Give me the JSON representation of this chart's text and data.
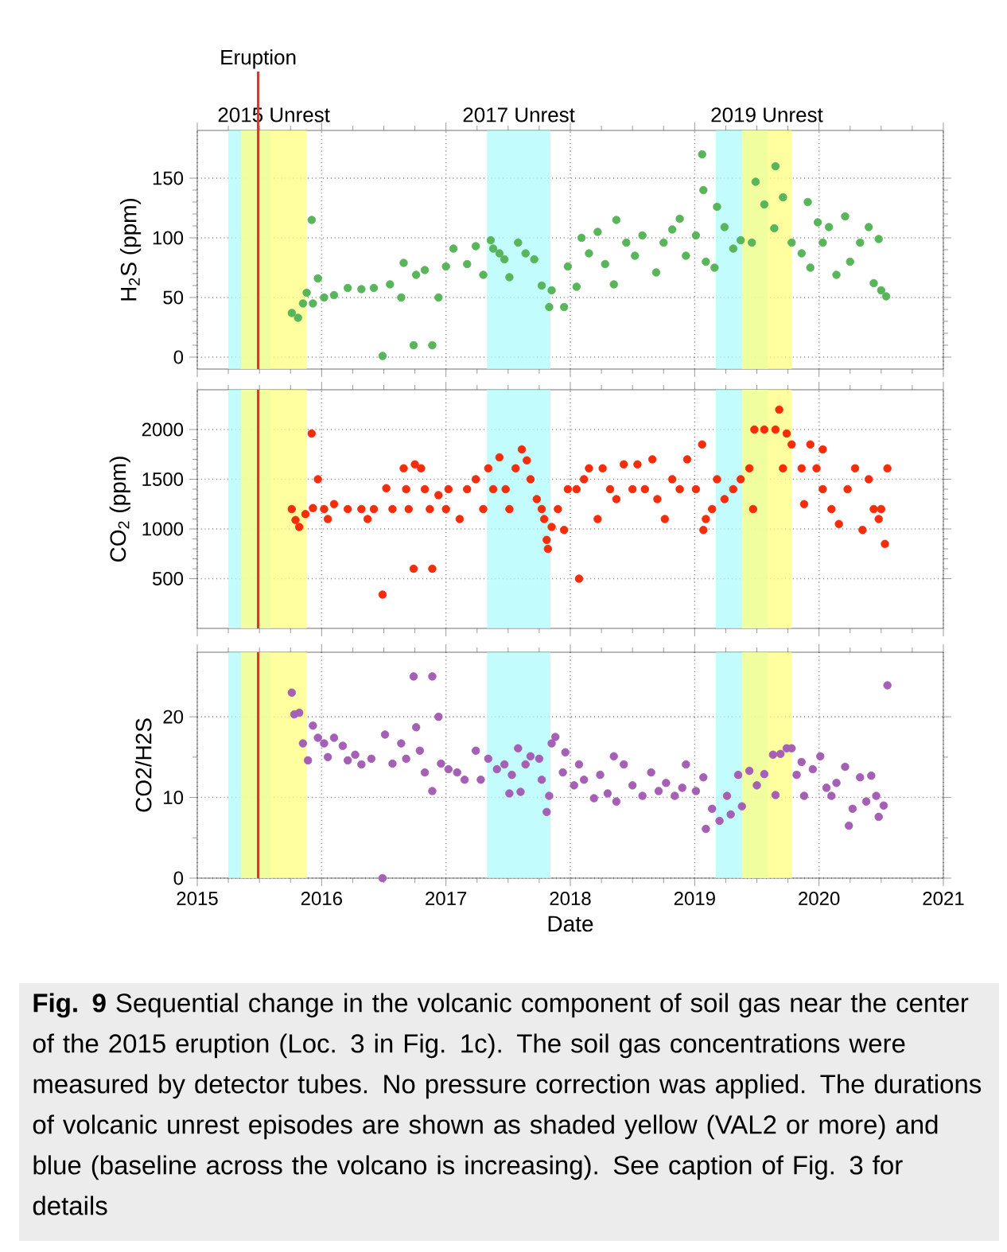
{
  "chart_data": [
    {
      "type": "scatter",
      "ylabel": "H$_{2}$S (ppm)",
      "color": "#59b55a",
      "marker": "circle",
      "grid": true,
      "tick_labels": "y",
      "xlim": [
        2015,
        2021
      ],
      "xticks": [
        2015,
        2016,
        2017,
        2018,
        2019,
        2020,
        2021
      ],
      "ylim": [
        -10,
        190
      ],
      "yticks": [
        0,
        50,
        100,
        150
      ],
      "x": [
        2015.76,
        2015.81,
        2015.85,
        2015.88,
        2015.92,
        2015.93,
        2015.97,
        2016.02,
        2016.1,
        2016.21,
        2016.32,
        2016.42,
        2016.49,
        2016.55,
        2016.64,
        2016.66,
        2016.74,
        2016.76,
        2016.83,
        2016.89,
        2016.94,
        2017.0,
        2017.06,
        2017.17,
        2017.24,
        2017.3,
        2017.36,
        2017.38,
        2017.43,
        2017.47,
        2017.51,
        2017.58,
        2017.64,
        2017.71,
        2017.77,
        2017.83,
        2017.85,
        2017.95,
        2017.98,
        2018.05,
        2018.09,
        2018.15,
        2018.22,
        2018.28,
        2018.35,
        2018.37,
        2018.45,
        2018.52,
        2018.58,
        2018.69,
        2018.75,
        2018.82,
        2018.88,
        2018.93,
        2019.01,
        2019.06,
        2019.07,
        2019.09,
        2019.16,
        2019.18,
        2019.24,
        2019.31,
        2019.37,
        2019.46,
        2019.49,
        2019.56,
        2019.64,
        2019.65,
        2019.71,
        2019.78,
        2019.86,
        2019.91,
        2019.93,
        2019.99,
        2020.03,
        2020.08,
        2020.14,
        2020.21,
        2020.25,
        2020.33,
        2020.4,
        2020.44,
        2020.48,
        2020.5,
        2020.54
      ],
      "values": [
        37,
        33,
        45,
        54,
        115,
        45,
        66,
        50,
        52,
        58,
        57,
        58,
        1,
        61,
        50,
        79,
        10,
        69,
        73,
        10,
        50,
        76,
        91,
        78,
        93,
        69,
        98,
        91,
        87,
        82,
        67,
        96,
        87,
        82,
        60,
        42,
        56,
        42,
        76,
        59,
        100,
        87,
        105,
        78,
        61,
        115,
        96,
        85,
        102,
        71,
        96,
        107,
        116,
        85,
        102,
        170,
        140,
        80,
        75,
        126,
        109,
        91,
        98,
        96,
        147,
        128,
        108,
        160,
        134,
        96,
        87,
        130,
        75,
        113,
        96,
        109,
        69,
        118,
        80,
        96,
        109,
        62,
        99,
        56,
        51
      ],
      "bands": [
        {
          "axis": "x",
          "from": 2015.25,
          "to": 2015.59,
          "color": "#aefbfb"
        },
        {
          "axis": "x",
          "from": 2015.35,
          "to": 2015.88,
          "color": "#ffff80",
          "label": "2015 Unrest"
        },
        {
          "axis": "x",
          "from": 2017.33,
          "to": 2017.84,
          "color": "#aefbfb",
          "label": "2017 Unrest"
        },
        {
          "axis": "x",
          "from": 2019.17,
          "to": 2019.59,
          "color": "#aefbfb"
        },
        {
          "axis": "x",
          "from": 2019.38,
          "to": 2019.78,
          "color": "#ffff80",
          "label": "2019 Unrest"
        }
      ],
      "ref_lines": [
        {
          "axis": "x",
          "value": 2015.49,
          "color": "#e8322a",
          "label": "Eruption"
        }
      ]
    },
    {
      "type": "scatter",
      "ylabel": "CO$_{2}$ (ppm)",
      "color": "#f52c0a",
      "marker": "circle",
      "grid": true,
      "tick_labels": "y",
      "xlim": [
        2015,
        2021
      ],
      "xticks": [
        2015,
        2016,
        2017,
        2018,
        2019,
        2020,
        2021
      ],
      "ylim": [
        0,
        2400
      ],
      "yticks": [
        500,
        1000,
        1500,
        2000
      ],
      "x": [
        2015.76,
        2015.79,
        2015.82,
        2015.87,
        2015.92,
        2015.93,
        2015.97,
        2016.02,
        2016.05,
        2016.1,
        2016.21,
        2016.32,
        2016.37,
        2016.42,
        2016.49,
        2016.52,
        2016.57,
        2016.66,
        2016.68,
        2016.7,
        2016.74,
        2016.75,
        2016.8,
        2016.83,
        2016.87,
        2016.89,
        2016.94,
        2017.0,
        2017.02,
        2017.11,
        2017.17,
        2017.24,
        2017.3,
        2017.34,
        2017.38,
        2017.43,
        2017.48,
        2017.51,
        2017.56,
        2017.61,
        2017.65,
        2017.68,
        2017.73,
        2017.77,
        2017.79,
        2017.81,
        2017.82,
        2017.85,
        2017.9,
        2017.95,
        2017.98,
        2018.05,
        2018.07,
        2018.11,
        2018.15,
        2018.22,
        2018.26,
        2018.32,
        2018.37,
        2018.43,
        2018.5,
        2018.54,
        2018.6,
        2018.66,
        2018.7,
        2018.76,
        2018.82,
        2018.88,
        2018.94,
        2019.01,
        2019.06,
        2019.07,
        2019.09,
        2019.14,
        2019.18,
        2019.24,
        2019.31,
        2019.37,
        2019.44,
        2019.47,
        2019.48,
        2019.56,
        2019.65,
        2019.68,
        2019.71,
        2019.74,
        2019.78,
        2019.86,
        2019.88,
        2019.93,
        2019.98,
        2020.03,
        2020.03,
        2020.1,
        2020.16,
        2020.23,
        2020.29,
        2020.35,
        2020.4,
        2020.44,
        2020.48,
        2020.5,
        2020.53,
        2020.55
      ],
      "values": [
        1200,
        1090,
        1020,
        1150,
        1960,
        1210,
        1500,
        1200,
        1100,
        1250,
        1200,
        1200,
        1100,
        1200,
        340,
        1410,
        1200,
        1610,
        1400,
        1200,
        600,
        1650,
        1610,
        1400,
        1200,
        600,
        1340,
        1200,
        1400,
        1100,
        1400,
        1500,
        1200,
        1610,
        1400,
        1720,
        1400,
        1200,
        1610,
        1800,
        1690,
        1500,
        1300,
        1200,
        1100,
        890,
        800,
        1020,
        1200,
        990,
        1400,
        1400,
        500,
        1500,
        1610,
        1100,
        1610,
        1400,
        1300,
        1650,
        1400,
        1650,
        1400,
        1700,
        1300,
        1100,
        1500,
        1400,
        1700,
        1400,
        1850,
        990,
        1100,
        1200,
        1500,
        1300,
        1400,
        1500,
        1610,
        1200,
        2000,
        2000,
        2000,
        2200,
        1610,
        1960,
        1850,
        1610,
        1250,
        1850,
        1610,
        1800,
        1400,
        1200,
        1050,
        1400,
        1610,
        990,
        1500,
        1200,
        1100,
        1200,
        850,
        1610
      ],
      "bands": [
        {
          "axis": "x",
          "from": 2015.25,
          "to": 2015.59,
          "color": "#aefbfb"
        },
        {
          "axis": "x",
          "from": 2015.35,
          "to": 2015.88,
          "color": "#ffff80"
        },
        {
          "axis": "x",
          "from": 2017.33,
          "to": 2017.84,
          "color": "#aefbfb"
        },
        {
          "axis": "x",
          "from": 2019.17,
          "to": 2019.59,
          "color": "#aefbfb"
        },
        {
          "axis": "x",
          "from": 2019.38,
          "to": 2019.78,
          "color": "#ffff80"
        }
      ],
      "ref_lines": [
        {
          "axis": "x",
          "value": 2015.49,
          "color": "#e8322a"
        }
      ]
    },
    {
      "type": "scatter",
      "ylabel": "CO2/H2S",
      "xlabel": "Date",
      "color": "#a55fb5",
      "marker": "circle",
      "grid": true,
      "xlim": [
        2015,
        2021
      ],
      "xticks": [
        2015,
        2016,
        2017,
        2018,
        2019,
        2020,
        2021
      ],
      "ylim": [
        0,
        28
      ],
      "yticks": [
        0,
        10,
        20
      ],
      "x": [
        2015.76,
        2015.78,
        2015.82,
        2015.85,
        2015.89,
        2015.93,
        2015.97,
        2016.02,
        2016.05,
        2016.1,
        2016.17,
        2016.21,
        2016.27,
        2016.32,
        2016.4,
        2016.49,
        2016.51,
        2016.57,
        2016.64,
        2016.68,
        2016.74,
        2016.76,
        2016.79,
        2016.83,
        2016.89,
        2016.89,
        2016.94,
        2016.96,
        2017.02,
        2017.09,
        2017.15,
        2017.24,
        2017.28,
        2017.34,
        2017.41,
        2017.47,
        2017.51,
        2017.53,
        2017.58,
        2017.6,
        2017.64,
        2017.68,
        2017.75,
        2017.77,
        2017.81,
        2017.83,
        2017.85,
        2017.88,
        2017.94,
        2017.96,
        2018.03,
        2018.07,
        2018.11,
        2018.19,
        2018.24,
        2018.3,
        2018.35,
        2018.37,
        2018.43,
        2018.5,
        2018.58,
        2018.65,
        2018.71,
        2018.77,
        2018.84,
        2018.9,
        2018.93,
        2019.01,
        2019.07,
        2019.09,
        2019.14,
        2019.2,
        2019.26,
        2019.29,
        2019.35,
        2019.38,
        2019.44,
        2019.5,
        2019.56,
        2019.63,
        2019.65,
        2019.69,
        2019.74,
        2019.78,
        2019.82,
        2019.86,
        2019.88,
        2019.95,
        2020.01,
        2020.06,
        2020.1,
        2020.14,
        2020.21,
        2020.24,
        2020.27,
        2020.33,
        2020.38,
        2020.42,
        2020.46,
        2020.48,
        2020.52,
        2020.55
      ],
      "values": [
        23.0,
        20.3,
        20.5,
        16.7,
        14.6,
        18.9,
        17.4,
        16.7,
        15.0,
        17.4,
        16.4,
        14.6,
        15.3,
        14.1,
        14.8,
        0,
        17.8,
        14.2,
        16.7,
        14.8,
        25.0,
        18.7,
        15.8,
        13.1,
        25.0,
        10.8,
        20.0,
        14.2,
        13.5,
        13.1,
        12.2,
        15.8,
        12.2,
        14.8,
        13.5,
        14.1,
        10.5,
        12.8,
        16.1,
        10.7,
        14.1,
        15.1,
        14.8,
        12.2,
        8.2,
        10.2,
        16.7,
        17.5,
        13.1,
        15.6,
        11.5,
        14.1,
        12.2,
        9.9,
        12.8,
        10.5,
        15.1,
        9.5,
        14.1,
        11.5,
        10.2,
        13.1,
        10.8,
        11.8,
        10.2,
        11.2,
        14.1,
        10.8,
        12.5,
        6.1,
        8.6,
        7.1,
        10.2,
        7.9,
        12.8,
        8.9,
        13.3,
        11.5,
        12.9,
        15.3,
        10.3,
        15.4,
        16.1,
        16.1,
        12.8,
        14.4,
        10.2,
        13.5,
        15.1,
        11.2,
        10.2,
        11.8,
        13.8,
        6.5,
        8.6,
        12.5,
        9.5,
        12.7,
        10.2,
        7.6,
        9.0,
        23.9
      ],
      "bands": [
        {
          "axis": "x",
          "from": 2015.25,
          "to": 2015.59,
          "color": "#aefbfb"
        },
        {
          "axis": "x",
          "from": 2015.35,
          "to": 2015.88,
          "color": "#ffff80"
        },
        {
          "axis": "x",
          "from": 2017.33,
          "to": 2017.84,
          "color": "#aefbfb"
        },
        {
          "axis": "x",
          "from": 2019.17,
          "to": 2019.59,
          "color": "#aefbfb"
        },
        {
          "axis": "x",
          "from": 2019.38,
          "to": 2019.78,
          "color": "#ffff80"
        }
      ],
      "ref_lines": [
        {
          "axis": "x",
          "value": 2015.49,
          "color": "#e8322a"
        }
      ],
      "annotations": [
        "**Fig. 9** Sequential change in the volcanic component of soil gas near the center of the 2015 eruption (Loc. 3 in Fig. 1c). The soil gas concentrations were measured by detector tubes. No pressure correction was applied. The durations of volcanic unrest episodes are shown as shaded yellow (VAL2 or more) and blue (baseline across the volcano is increasing). See caption of Fig. 3 for details"
      ]
    }
  ]
}
